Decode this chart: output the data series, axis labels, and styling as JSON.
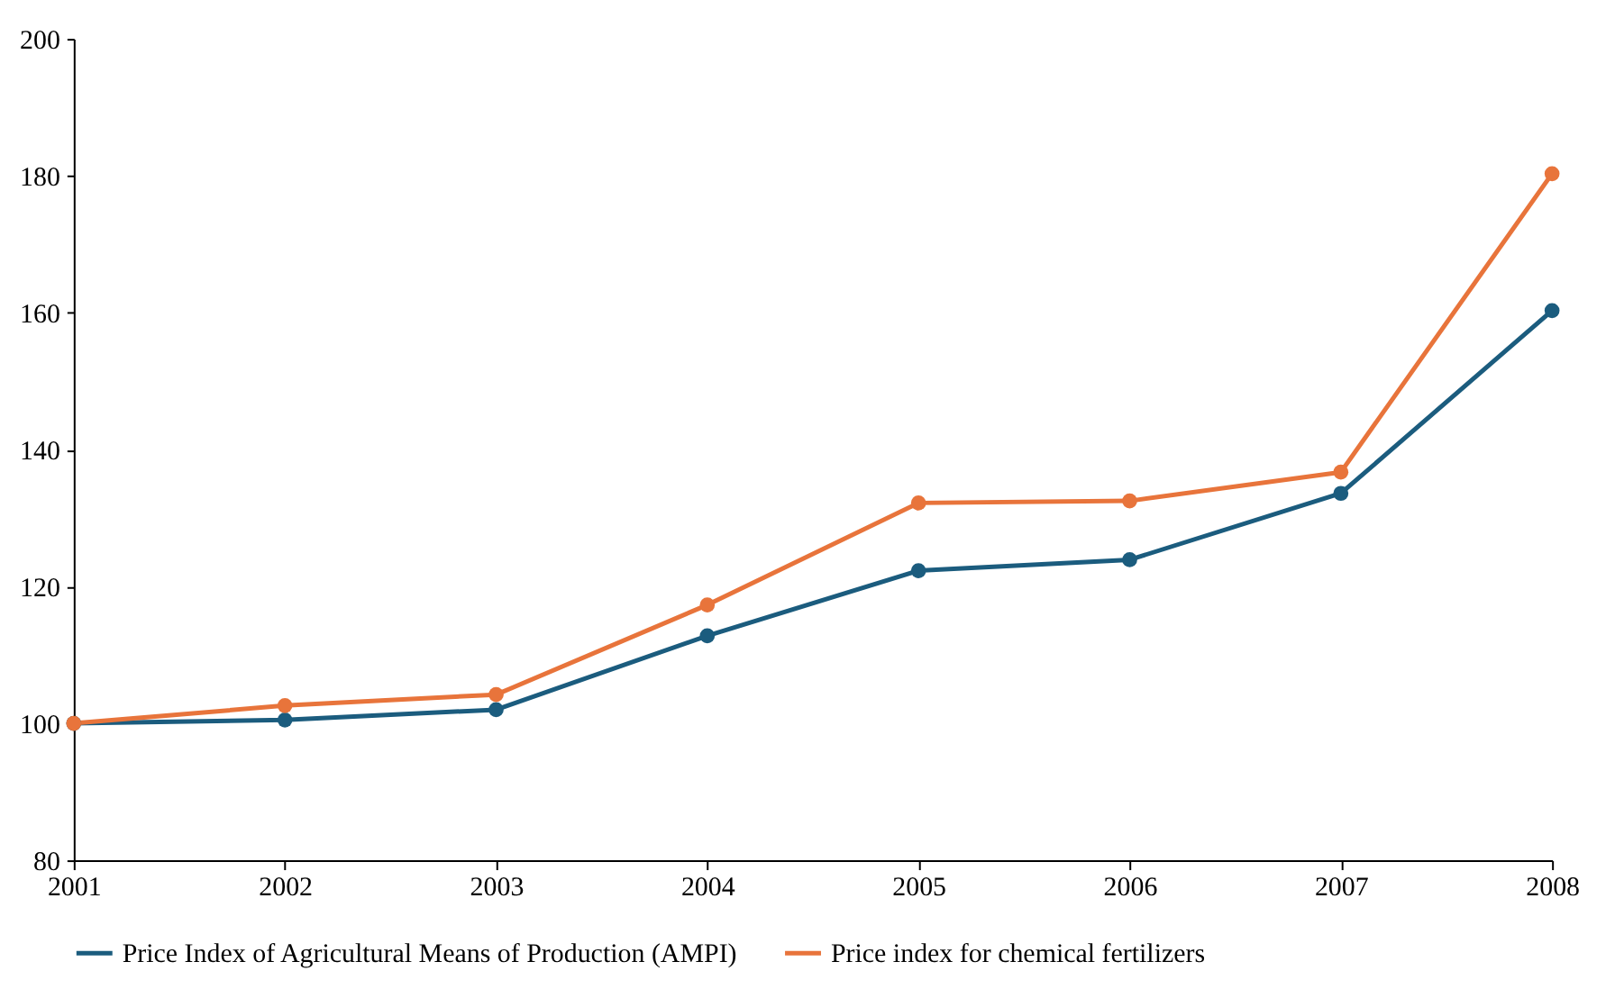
{
  "chart_data": {
    "type": "line",
    "x": [
      2001,
      2002,
      2003,
      2004,
      2005,
      2006,
      2007,
      2008
    ],
    "series": [
      {
        "name": "Price Index of Agricultural Means of Production (AMPI)",
        "color": "#1b5c7e",
        "values": [
          100,
          100.5,
          102,
          112.8,
          122.3,
          123.9,
          133.6,
          160.3
        ]
      },
      {
        "name": "Price index for chemical fertilizers",
        "color": "#e8743b",
        "values": [
          100,
          102.6,
          104.2,
          117.3,
          132.2,
          132.5,
          136.7,
          180.3
        ]
      }
    ],
    "xlim": [
      2001,
      2008
    ],
    "xticks": [
      2001,
      2002,
      2003,
      2004,
      2005,
      2006,
      2007,
      2008
    ],
    "ylim": [
      80,
      200
    ],
    "yticks": [
      80,
      100,
      120,
      140,
      160,
      180,
      200
    ],
    "grid": false,
    "legend": "bottom",
    "marker": "circle",
    "line_style": "solid"
  }
}
